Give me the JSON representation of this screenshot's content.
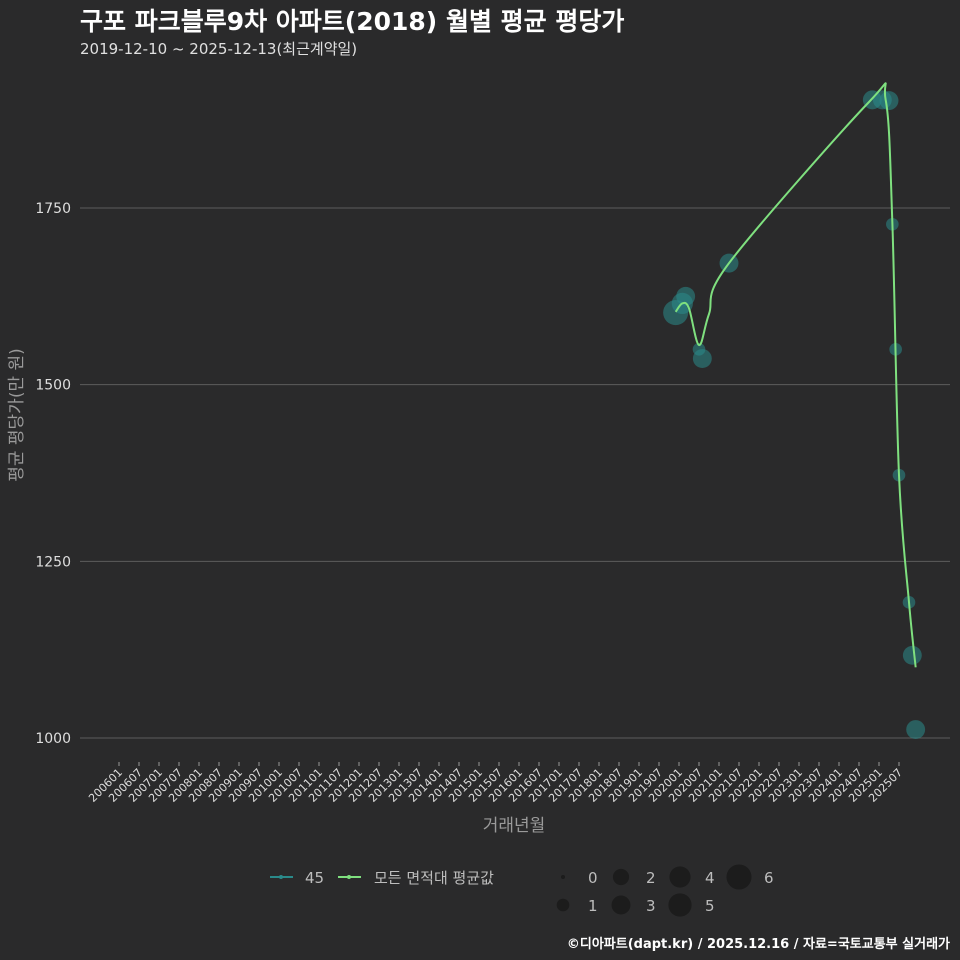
{
  "header": {
    "title": "구포 파크블루9차 아파트(2018) 월별 평균 평당가",
    "subtitle": "2019-12-10 ~ 2025-12-13(최근계약일)"
  },
  "footer": {
    "credit": "©디아파트(dapt.kr) / 2025.12.16 / 자료=국토교통부 실거래가"
  },
  "colors": {
    "background": "#2a2a2b",
    "gridline": "#5c5c5c",
    "series_45": "#2a8a8a",
    "series_avg": "#7fe07f"
  },
  "chart_data": {
    "type": "line",
    "title": "구포 파크블루9차 아파트(2018) 월별 평균 평당가",
    "subtitle": "2019-12-10 ~ 2025-12-13(최근계약일)",
    "xlabel": "거래년월",
    "ylabel": "평균 평당가(만 원)",
    "ylim": [
      960,
      1930
    ],
    "yticks": [
      1000,
      1250,
      1500,
      1750
    ],
    "grid": true,
    "legend_position": "bottom",
    "x_ticks": [
      "200601",
      "200607",
      "200701",
      "200707",
      "200801",
      "200807",
      "200901",
      "200907",
      "201001",
      "201007",
      "201101",
      "201107",
      "201201",
      "201207",
      "201301",
      "201307",
      "201401",
      "201407",
      "201501",
      "201507",
      "201601",
      "201607",
      "201701",
      "201707",
      "201801",
      "201807",
      "201901",
      "201907",
      "202001",
      "202007",
      "202101",
      "202107",
      "202201",
      "202207",
      "202301",
      "202307",
      "202401",
      "202407",
      "202501",
      "202507"
    ],
    "legend": {
      "series": [
        {
          "label": "45",
          "color": "#2a8a8a"
        },
        {
          "label": "모든 면적대 평균값",
          "color": "#7fe07f"
        }
      ],
      "size_legend": {
        "values": [
          0,
          1,
          2,
          3,
          4,
          5,
          6
        ]
      }
    },
    "series": [
      {
        "name": "45",
        "kind": "scatter",
        "points": [
          {
            "x": "201912",
            "y": 1602,
            "count": 6
          },
          {
            "x": "202002",
            "y": 1615,
            "count": 4
          },
          {
            "x": "202003",
            "y": 1625,
            "count": 3
          },
          {
            "x": "202007",
            "y": 1550,
            "count": 1
          },
          {
            "x": "202008",
            "y": 1537,
            "count": 3
          },
          {
            "x": "202104",
            "y": 1672,
            "count": 3
          },
          {
            "x": "202411",
            "y": 1903,
            "count": 3
          },
          {
            "x": "202502",
            "y": 1903,
            "count": 3
          },
          {
            "x": "202504",
            "y": 1902,
            "count": 3
          },
          {
            "x": "202505",
            "y": 1727,
            "count": 1
          },
          {
            "x": "202506",
            "y": 1550,
            "count": 1
          },
          {
            "x": "202507",
            "y": 1372,
            "count": 1
          },
          {
            "x": "202510",
            "y": 1192,
            "count": 1
          },
          {
            "x": "202511",
            "y": 1117,
            "count": 3
          },
          {
            "x": "202512",
            "y": 1012,
            "count": 3
          }
        ]
      },
      {
        "name": "모든 면적대 평균값",
        "kind": "line",
        "points": [
          {
            "x": "201912",
            "y": 1603
          },
          {
            "x": "202002",
            "y": 1615
          },
          {
            "x": "202004",
            "y": 1608
          },
          {
            "x": "202007",
            "y": 1556
          },
          {
            "x": "202010",
            "y": 1600
          },
          {
            "x": "202104",
            "y": 1672
          },
          {
            "x": "202410",
            "y": 1900
          },
          {
            "x": "202503",
            "y": 1903
          },
          {
            "x": "202505",
            "y": 1730
          },
          {
            "x": "202507",
            "y": 1372
          },
          {
            "x": "202510",
            "y": 1192
          },
          {
            "x": "202512",
            "y": 1100
          }
        ]
      }
    ]
  }
}
